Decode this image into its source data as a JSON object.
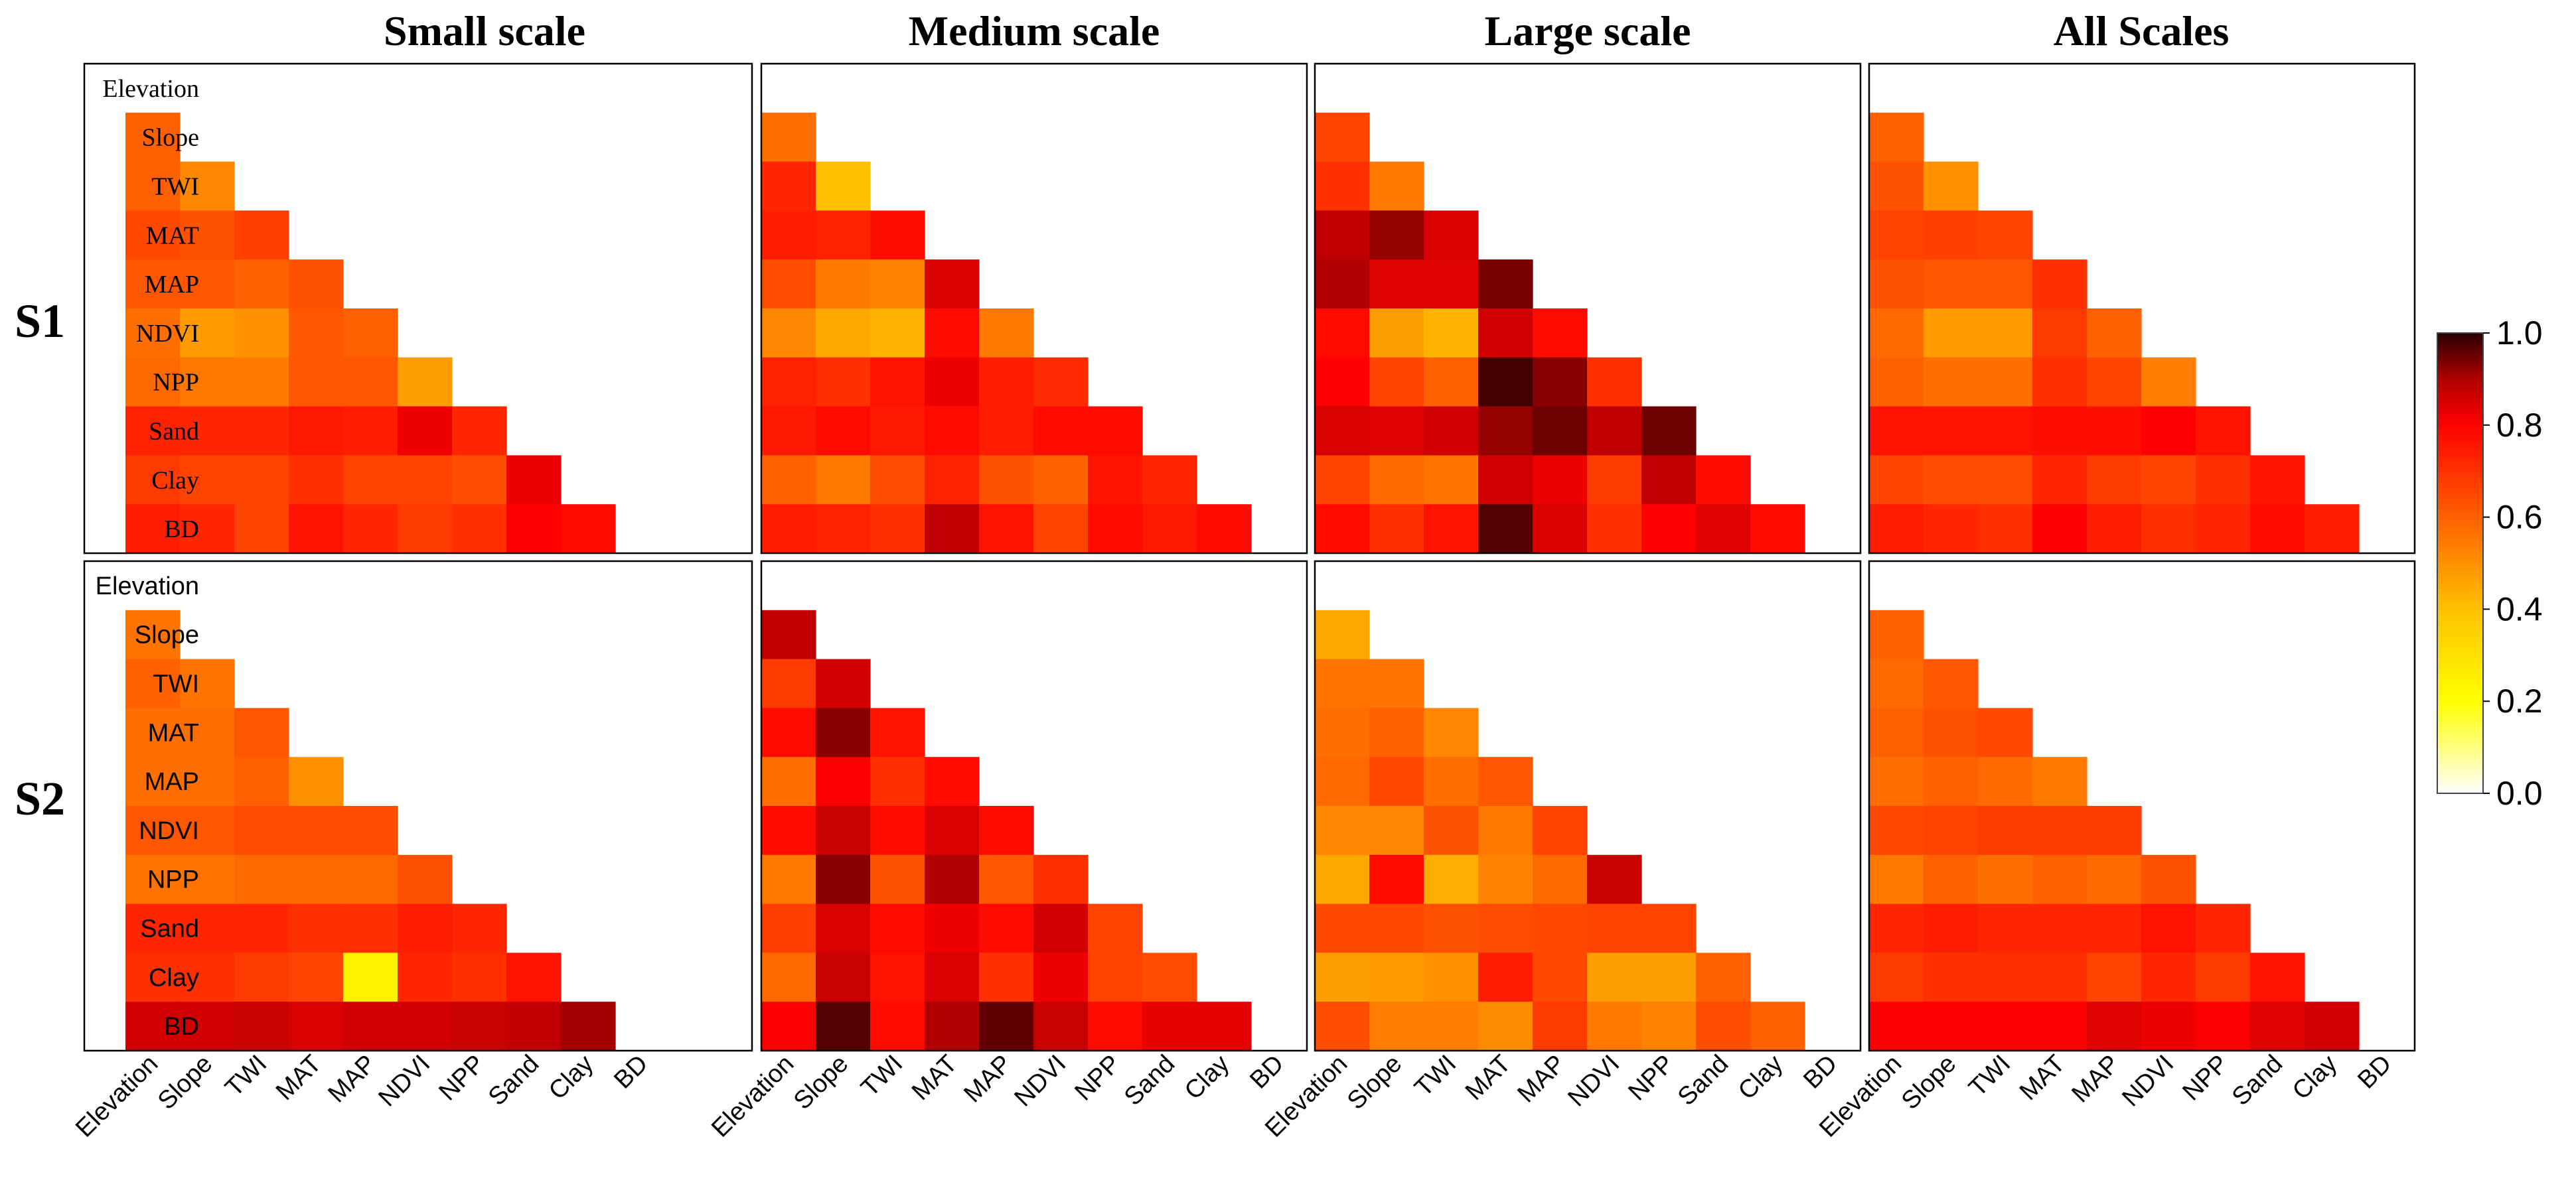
{
  "chart_data": {
    "type": "heatmap",
    "variables": [
      "Elevation",
      "Slope",
      "TWI",
      "MAT",
      "MAP",
      "NDVI",
      "NPP",
      "Sand",
      "Clay",
      "BD"
    ],
    "columns": [
      "Small scale",
      "Medium scale",
      "Large scale",
      "All Scales"
    ],
    "rows": [
      "S1",
      "S2"
    ],
    "colorbar": {
      "range": [
        0.0,
        1.0
      ],
      "ticks": [
        "0.0",
        "0.2",
        "0.4",
        "0.6",
        "0.8",
        "1.0"
      ],
      "stops": [
        {
          "v": 0.0,
          "color": "#ffffff"
        },
        {
          "v": 0.2,
          "color": "#ffff00"
        },
        {
          "v": 0.4,
          "color": "#ffc000"
        },
        {
          "v": 0.6,
          "color": "#ff6000"
        },
        {
          "v": 0.8,
          "color": "#ff0000"
        },
        {
          "v": 0.9,
          "color": "#b00000"
        },
        {
          "v": 1.0,
          "color": "#2a0000"
        }
      ]
    },
    "panels": [
      {
        "row": "S1",
        "column": "Small scale",
        "lower_triangle": [
          [
            0.6
          ],
          [
            0.6,
            0.52
          ],
          [
            0.65,
            0.63,
            0.67
          ],
          [
            0.62,
            0.62,
            0.6,
            0.63
          ],
          [
            0.57,
            0.48,
            0.5,
            0.62,
            0.6
          ],
          [
            0.58,
            0.55,
            0.55,
            0.62,
            0.62,
            0.47
          ],
          [
            0.73,
            0.72,
            0.72,
            0.75,
            0.74,
            0.82,
            0.72
          ],
          [
            0.68,
            0.66,
            0.66,
            0.7,
            0.66,
            0.66,
            0.64,
            0.82
          ],
          [
            0.74,
            0.72,
            0.66,
            0.76,
            0.72,
            0.68,
            0.7,
            0.8,
            0.78
          ]
        ]
      },
      {
        "row": "S1",
        "column": "Medium scale",
        "lower_triangle": [
          [
            0.57
          ],
          [
            0.72,
            0.4
          ],
          [
            0.74,
            0.73,
            0.77
          ],
          [
            0.64,
            0.55,
            0.53,
            0.85
          ],
          [
            0.52,
            0.45,
            0.43,
            0.78,
            0.55
          ],
          [
            0.73,
            0.7,
            0.76,
            0.82,
            0.74,
            0.71
          ],
          [
            0.75,
            0.78,
            0.75,
            0.78,
            0.74,
            0.78,
            0.78
          ],
          [
            0.6,
            0.55,
            0.64,
            0.73,
            0.63,
            0.6,
            0.76,
            0.72
          ],
          [
            0.74,
            0.73,
            0.7,
            0.88,
            0.76,
            0.66,
            0.78,
            0.75,
            0.78
          ]
        ]
      },
      {
        "row": "S1",
        "column": "Large scale",
        "lower_triangle": [
          [
            0.66
          ],
          [
            0.7,
            0.55
          ],
          [
            0.88,
            0.92,
            0.85
          ],
          [
            0.9,
            0.84,
            0.84,
            0.94
          ],
          [
            0.78,
            0.47,
            0.43,
            0.86,
            0.78
          ],
          [
            0.8,
            0.66,
            0.6,
            0.98,
            0.93,
            0.7
          ],
          [
            0.85,
            0.84,
            0.86,
            0.92,
            0.95,
            0.88,
            0.95
          ],
          [
            0.66,
            0.58,
            0.56,
            0.86,
            0.82,
            0.68,
            0.88,
            0.78
          ],
          [
            0.78,
            0.7,
            0.76,
            0.97,
            0.85,
            0.7,
            0.8,
            0.84,
            0.78
          ]
        ]
      },
      {
        "row": "S1",
        "column": "All Scales",
        "lower_triangle": [
          [
            0.6
          ],
          [
            0.63,
            0.5
          ],
          [
            0.66,
            0.67,
            0.66
          ],
          [
            0.63,
            0.62,
            0.62,
            0.7
          ],
          [
            0.58,
            0.48,
            0.48,
            0.68,
            0.6
          ],
          [
            0.6,
            0.57,
            0.57,
            0.7,
            0.66,
            0.54
          ],
          [
            0.76,
            0.76,
            0.76,
            0.77,
            0.77,
            0.8,
            0.76
          ],
          [
            0.66,
            0.64,
            0.64,
            0.72,
            0.68,
            0.66,
            0.7,
            0.76
          ],
          [
            0.74,
            0.72,
            0.7,
            0.8,
            0.74,
            0.7,
            0.72,
            0.78,
            0.74
          ]
        ]
      },
      {
        "row": "S2",
        "column": "Small scale",
        "lower_triangle": [
          [
            0.56
          ],
          [
            0.6,
            0.56
          ],
          [
            0.57,
            0.57,
            0.62
          ],
          [
            0.57,
            0.57,
            0.6,
            0.5
          ],
          [
            0.62,
            0.62,
            0.64,
            0.64,
            0.64
          ],
          [
            0.56,
            0.56,
            0.58,
            0.58,
            0.58,
            0.63
          ],
          [
            0.72,
            0.72,
            0.72,
            0.7,
            0.7,
            0.74,
            0.72
          ],
          [
            0.7,
            0.7,
            0.68,
            0.66,
            0.24,
            0.72,
            0.7,
            0.76
          ],
          [
            0.86,
            0.86,
            0.87,
            0.85,
            0.86,
            0.86,
            0.87,
            0.88,
            0.91
          ]
        ]
      },
      {
        "row": "S2",
        "column": "Medium scale",
        "lower_triangle": [
          [
            0.88
          ],
          [
            0.68,
            0.86
          ],
          [
            0.78,
            0.93,
            0.76
          ],
          [
            0.57,
            0.8,
            0.7,
            0.78
          ],
          [
            0.78,
            0.87,
            0.78,
            0.85,
            0.78
          ],
          [
            0.55,
            0.93,
            0.63,
            0.9,
            0.62,
            0.7
          ],
          [
            0.67,
            0.85,
            0.78,
            0.82,
            0.78,
            0.86,
            0.66
          ],
          [
            0.58,
            0.87,
            0.76,
            0.85,
            0.7,
            0.82,
            0.66,
            0.64
          ],
          [
            0.8,
            0.97,
            0.78,
            0.9,
            0.96,
            0.87,
            0.78,
            0.83,
            0.83
          ]
        ]
      },
      {
        "row": "S2",
        "column": "Large scale",
        "lower_triangle": [
          [
            0.45
          ],
          [
            0.56,
            0.56
          ],
          [
            0.57,
            0.6,
            0.52
          ],
          [
            0.58,
            0.65,
            0.57,
            0.62
          ],
          [
            0.52,
            0.52,
            0.63,
            0.55,
            0.66
          ],
          [
            0.45,
            0.78,
            0.44,
            0.53,
            0.58,
            0.87
          ],
          [
            0.65,
            0.65,
            0.63,
            0.64,
            0.65,
            0.66,
            0.66
          ],
          [
            0.47,
            0.48,
            0.5,
            0.74,
            0.65,
            0.47,
            0.47,
            0.6
          ],
          [
            0.64,
            0.54,
            0.54,
            0.51,
            0.68,
            0.55,
            0.53,
            0.64,
            0.6
          ]
        ]
      },
      {
        "row": "S2",
        "column": "All Scales",
        "lower_triangle": [
          [
            0.6
          ],
          [
            0.58,
            0.62
          ],
          [
            0.6,
            0.63,
            0.65
          ],
          [
            0.57,
            0.6,
            0.58,
            0.55
          ],
          [
            0.65,
            0.66,
            0.68,
            0.68,
            0.68
          ],
          [
            0.55,
            0.6,
            0.57,
            0.6,
            0.58,
            0.63
          ],
          [
            0.72,
            0.74,
            0.72,
            0.72,
            0.72,
            0.76,
            0.72
          ],
          [
            0.68,
            0.7,
            0.7,
            0.7,
            0.66,
            0.72,
            0.68,
            0.76
          ],
          [
            0.8,
            0.8,
            0.8,
            0.8,
            0.84,
            0.82,
            0.8,
            0.84,
            0.86
          ]
        ]
      }
    ]
  }
}
